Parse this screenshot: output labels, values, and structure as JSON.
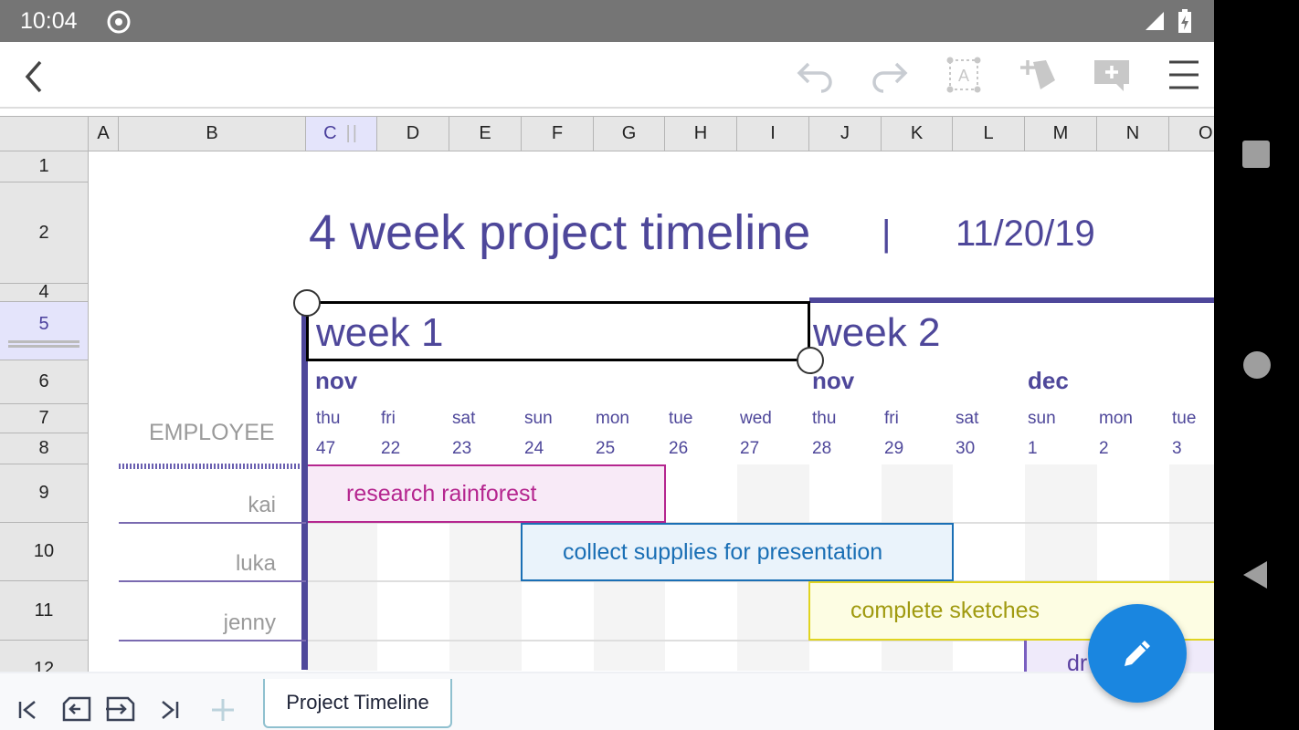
{
  "status_bar": {
    "time": "10:04"
  },
  "toolbar": {
    "back": "back-icon",
    "icons": [
      "undo-icon",
      "redo-icon",
      "text-box-icon",
      "insert-shape-icon",
      "add-comment-icon",
      "menu-icon"
    ]
  },
  "columns": [
    "A",
    "B",
    "C",
    "D",
    "E",
    "F",
    "G",
    "H",
    "I",
    "J",
    "K",
    "L",
    "M",
    "N",
    "O"
  ],
  "rows": [
    "1",
    "2",
    "4",
    "5",
    "6",
    "7",
    "8",
    "9",
    "10",
    "11",
    "12"
  ],
  "selected_column": "C",
  "selected_row": "5",
  "sheet": {
    "title": "4 week project timeline",
    "separator": "|",
    "date": "11/20/19",
    "week1": "week 1",
    "week2": "week 2",
    "months": [
      "nov",
      "nov",
      "dec"
    ],
    "days": [
      "thu",
      "fri",
      "sat",
      "sun",
      "mon",
      "tue",
      "wed",
      "thu",
      "fri",
      "sat",
      "sun",
      "mon",
      "tue"
    ],
    "dates": [
      "47",
      "22",
      "23",
      "24",
      "25",
      "26",
      "27",
      "28",
      "29",
      "30",
      "1",
      "2",
      "3"
    ],
    "employee_header": "EMPLOYEE",
    "employees": [
      "kai",
      "luka",
      "jenny"
    ],
    "tasks": [
      {
        "label": "research rainforest",
        "color": "#b5268f",
        "fill": "#f8eaf7"
      },
      {
        "label": "collect supplies for presentation",
        "color": "#1a6fb5",
        "fill": "#eaf3fb"
      },
      {
        "label": "complete sketches",
        "color": "#a09a10",
        "fill": "#fdfde3"
      },
      {
        "label": "dr",
        "color": "#5a3fa0",
        "fill": "#efeafa"
      }
    ]
  },
  "sheet_tabs": {
    "active": "Project Timeline"
  },
  "bottom_icons": [
    "first-sheet-icon",
    "move-sheet-left-icon",
    "move-sheet-right-icon",
    "last-sheet-icon",
    "add-sheet-icon"
  ],
  "accent": "#4e479a",
  "fab_color": "#1a86e0"
}
